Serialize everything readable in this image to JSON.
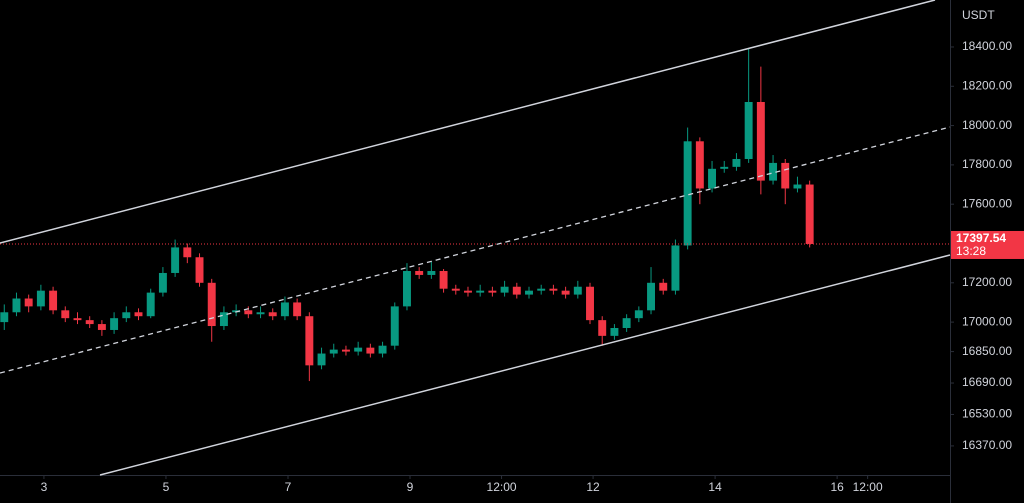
{
  "chart_data": {
    "type": "candlestick",
    "currency": "USDT",
    "up_color": "#089981",
    "down_color": "#f23645",
    "x": [
      2.35,
      2.55,
      2.75,
      2.95,
      3.15,
      3.35,
      3.55,
      3.75,
      3.95,
      4.15,
      4.35,
      4.55,
      4.75,
      4.95,
      5.15,
      5.35,
      5.55,
      5.75,
      5.95,
      6.15,
      6.35,
      6.55,
      6.75,
      6.95,
      7.15,
      7.35,
      7.55,
      7.75,
      7.95,
      8.15,
      8.35,
      8.55,
      8.75,
      8.95,
      9.15,
      9.35,
      9.55,
      9.75,
      9.95,
      10.15,
      10.35,
      10.55,
      10.75,
      10.95,
      11.15,
      11.35,
      11.55,
      11.75,
      11.95,
      12.15,
      12.35,
      12.55,
      12.75,
      12.95,
      13.15,
      13.35,
      13.55,
      13.75,
      13.95,
      14.15,
      14.35,
      14.55,
      14.75,
      14.95,
      15.15,
      15.35,
      15.55
    ],
    "open": [
      17000,
      17050,
      17120,
      17080,
      17160,
      17060,
      17020,
      17010,
      16990,
      16960,
      17020,
      17050,
      17030,
      17150,
      17250,
      17380,
      17330,
      17200,
      16980,
      17050,
      17060,
      17040,
      17050,
      17030,
      17100,
      17030,
      16780,
      16840,
      16860,
      16850,
      16870,
      16840,
      16880,
      17080,
      17260,
      17240,
      17260,
      17170,
      17160,
      17150,
      17160,
      17150,
      17180,
      17140,
      17160,
      17170,
      17160,
      17140,
      17180,
      17010,
      16930,
      16970,
      17020,
      17060,
      17200,
      17160,
      17390,
      17920,
      17680,
      17780,
      17790,
      17830,
      18120,
      17720,
      17810,
      17680,
      17700
    ],
    "high": [
      17090,
      17150,
      17140,
      17190,
      17180,
      17080,
      17050,
      17030,
      17010,
      17050,
      17080,
      17070,
      17170,
      17280,
      17420,
      17400,
      17350,
      17220,
      17080,
      17090,
      17080,
      17080,
      17070,
      17130,
      17120,
      17050,
      16870,
      16890,
      16880,
      16900,
      16890,
      16900,
      17100,
      17300,
      17280,
      17310,
      17270,
      17190,
      17180,
      17190,
      17180,
      17210,
      17200,
      17180,
      17190,
      17190,
      17180,
      17210,
      17200,
      17030,
      16990,
      17040,
      17080,
      17280,
      17220,
      17420,
      17990,
      17940,
      17820,
      17820,
      17860,
      18390,
      18300,
      17850,
      17830,
      17740,
      17720
    ],
    "low": [
      16960,
      17030,
      17050,
      17060,
      17040,
      17000,
      16990,
      16970,
      16930,
      16940,
      17000,
      17010,
      17020,
      17130,
      17230,
      17300,
      17180,
      16900,
      16960,
      17030,
      17020,
      17020,
      17010,
      17010,
      17010,
      16700,
      16760,
      16820,
      16830,
      16830,
      16820,
      16820,
      16860,
      17060,
      17220,
      17220,
      17150,
      17140,
      17130,
      17130,
      17130,
      17130,
      17120,
      17120,
      17140,
      17140,
      17120,
      17120,
      16990,
      16880,
      16910,
      16950,
      17000,
      17040,
      17140,
      17140,
      17370,
      17600,
      17660,
      17760,
      17770,
      17810,
      17650,
      17700,
      17600,
      17660,
      17380
    ],
    "close": [
      17050,
      17120,
      17080,
      17160,
      17060,
      17020,
      17010,
      16990,
      16960,
      17020,
      17050,
      17030,
      17150,
      17250,
      17380,
      17330,
      17200,
      16980,
      17050,
      17060,
      17040,
      17050,
      17030,
      17100,
      17030,
      16780,
      16840,
      16860,
      16850,
      16870,
      16840,
      16880,
      17080,
      17260,
      17240,
      17260,
      17170,
      17160,
      17150,
      17160,
      17150,
      17180,
      17140,
      17160,
      17170,
      17160,
      17140,
      17180,
      17010,
      16930,
      16970,
      17020,
      17060,
      17200,
      17160,
      17390,
      17920,
      17680,
      17780,
      17790,
      17830,
      18120,
      17720,
      17810,
      17680,
      17700,
      17397.54
    ],
    "countdown": "13:28",
    "xlim": [
      2.28,
      17.85
    ],
    "ylim": [
      16222,
      18639
    ],
    "xticks": [
      3,
      5,
      7,
      9,
      {
        "value": 10.5,
        "label": "12:00"
      },
      12,
      14,
      16,
      {
        "value": 16.5,
        "label": "12:00"
      }
    ],
    "yticks": [
      {
        "value": 18400,
        "label": "18400.00"
      },
      {
        "value": 18200,
        "label": "18200.00"
      },
      {
        "value": 18000,
        "label": "18000.00"
      },
      {
        "value": 17800,
        "label": "17800.00"
      },
      {
        "value": 17600,
        "label": "17600.00"
      },
      {
        "value": 17200,
        "label": "17200.00"
      },
      {
        "value": 17000,
        "label": "17000.00"
      },
      {
        "value": 16850,
        "label": "16850.00"
      },
      {
        "value": 16690,
        "label": "16690.00"
      },
      {
        "value": 16530,
        "label": "16530.00"
      },
      {
        "value": 16370,
        "label": "16370.00"
      }
    ]
  }
}
